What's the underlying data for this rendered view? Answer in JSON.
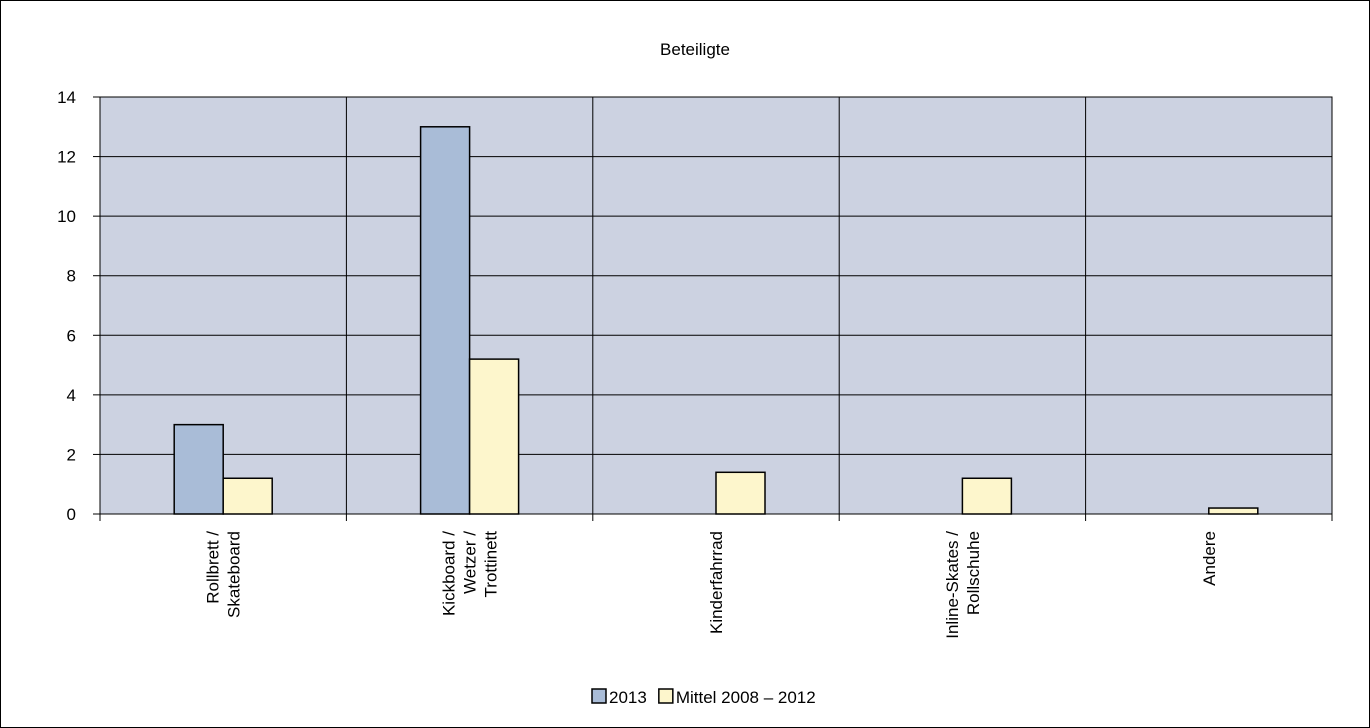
{
  "chart_data": {
    "type": "bar",
    "title": "Beteiligte",
    "categories": [
      [
        "Rollbrett /",
        "Skateboard"
      ],
      [
        "Kickboard /",
        "Wetzer /",
        "Trottinett"
      ],
      [
        "Kinderfahrrad"
      ],
      [
        "Inline-Skates /",
        "Rollschuhe"
      ],
      [
        "Andere"
      ]
    ],
    "series": [
      {
        "name": "2013",
        "color": "#a9bcd7",
        "values": [
          3,
          13,
          0,
          0,
          0
        ]
      },
      {
        "name": "Mittel  2008 – 2012",
        "color": "#fdf6cc",
        "values": [
          1.2,
          5.2,
          1.4,
          1.2,
          0.2
        ]
      }
    ],
    "ylim": [
      0,
      14
    ],
    "yticks": [
      0,
      2,
      4,
      6,
      8,
      10,
      12,
      14
    ],
    "plot_background": "#ccd2e1",
    "grid": true,
    "legend_position": "bottom-center"
  }
}
